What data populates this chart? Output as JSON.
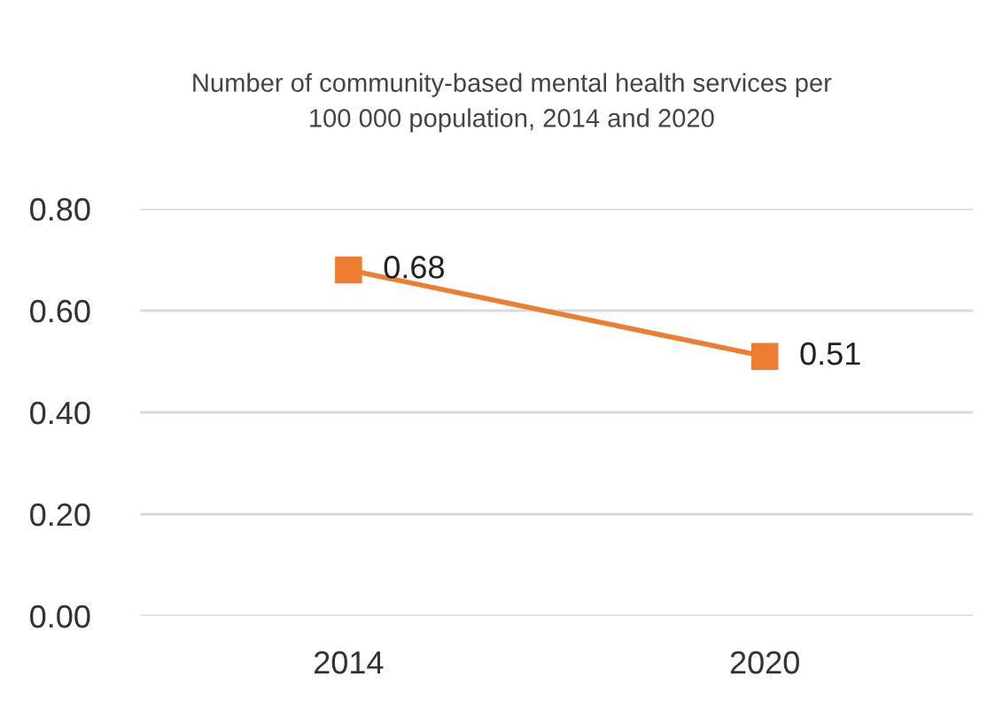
{
  "chart_data": {
    "type": "line",
    "title": "Number of community-based mental health services per\n100 000 population, 2014 and 2020",
    "categories": [
      "2014",
      "2020"
    ],
    "series": [
      {
        "color": "#ed7d31",
        "values": [
          0.68,
          0.51
        ]
      }
    ],
    "ylim": [
      0,
      0.8
    ],
    "yticks": [
      {
        "value": 0,
        "label": "0.00"
      },
      {
        "value": 0.2,
        "label": "0.20"
      },
      {
        "value": 0.4,
        "label": "0.40"
      },
      {
        "value": 0.6,
        "label": "0.60"
      },
      {
        "value": 0.8,
        "label": "0.80"
      }
    ],
    "grid": "y",
    "marker": "square",
    "line_style": "solid",
    "data_labels": true
  }
}
